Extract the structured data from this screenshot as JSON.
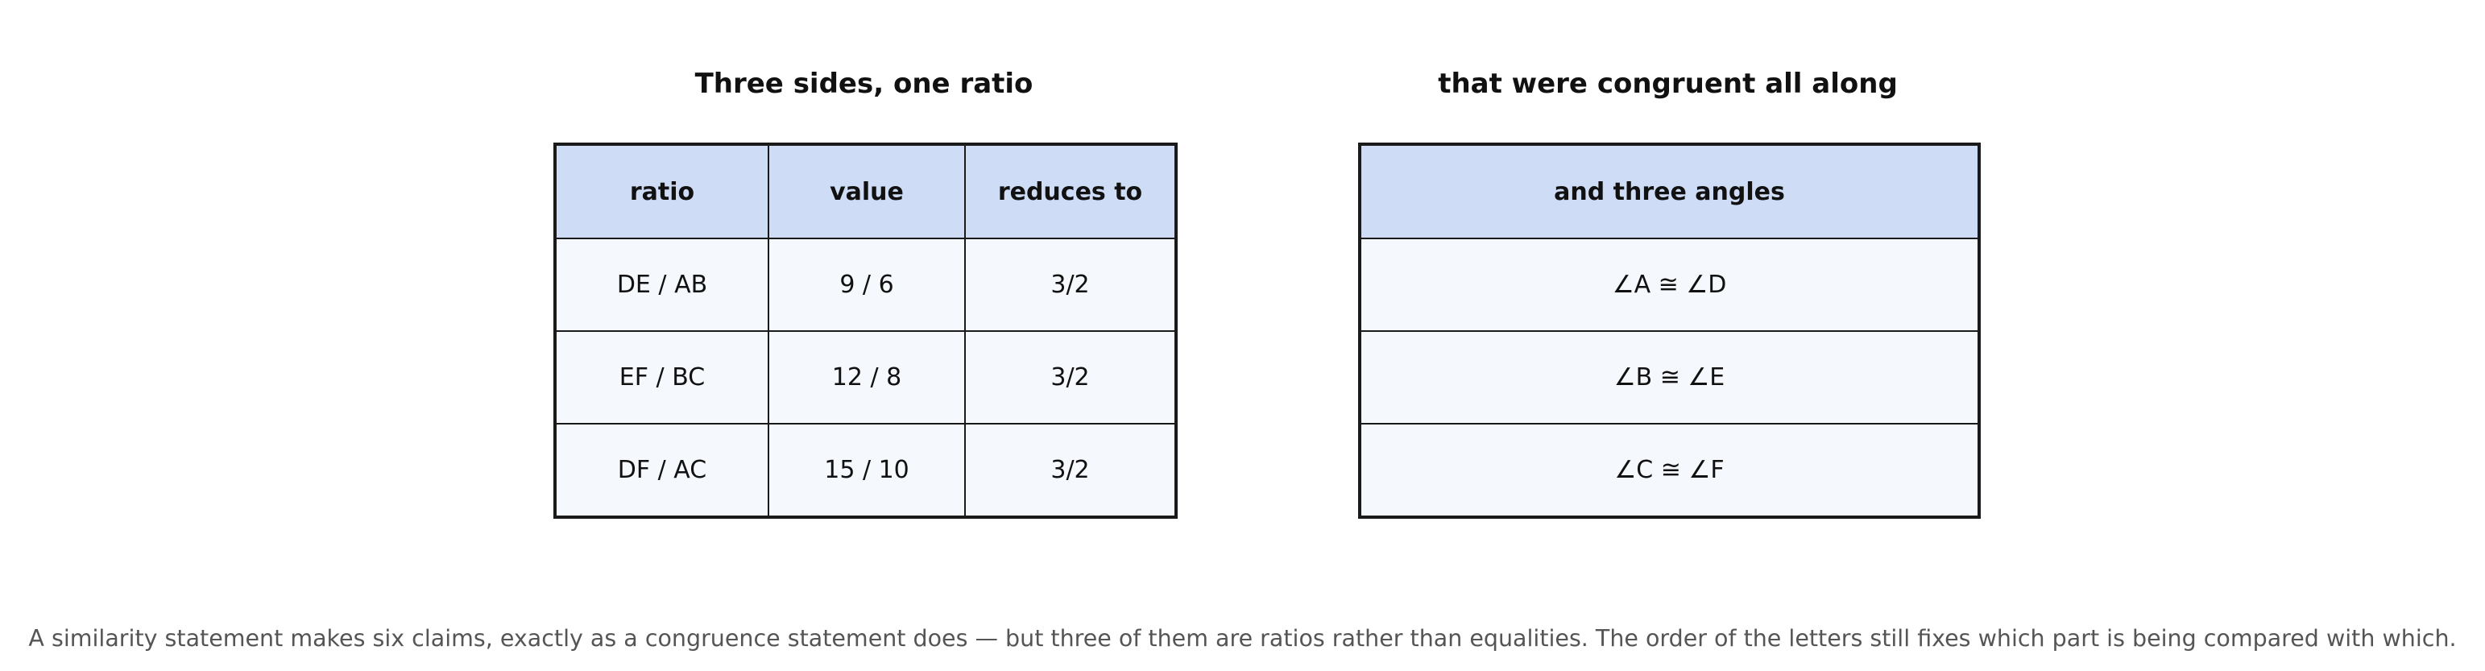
{
  "tables": [
    {
      "title": "Three sides, one ratio",
      "columns": [
        "ratio",
        "value",
        "reduces to"
      ],
      "rows": [
        [
          "DE / AB",
          "9 / 6",
          "3/2"
        ],
        [
          "EF / BC",
          "12 / 8",
          "3/2"
        ],
        [
          "DF / AC",
          "15 / 10",
          "3/2"
        ]
      ]
    },
    {
      "title": "that were congruent all along",
      "columns": [
        "and three angles"
      ],
      "rows": [
        [
          "∠A ≅ ∠D"
        ],
        [
          "∠B ≅ ∠E"
        ],
        [
          "∠C ≅ ∠F"
        ]
      ]
    }
  ],
  "caption": "A similarity statement makes six claims, exactly as a congruence statement does — but three of them are ratios rather than equalities. The order of the letters still fixes which part is being compared with which."
}
